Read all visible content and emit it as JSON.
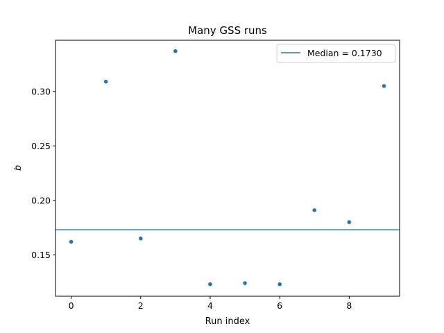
{
  "chart_data": {
    "type": "scatter",
    "title": "Many GSS runs",
    "xlabel": "Run index",
    "ylabel": "b",
    "xlim": [
      -0.45,
      9.45
    ],
    "ylim": [
      0.112,
      0.347
    ],
    "xticks": [
      0,
      2,
      4,
      6,
      8
    ],
    "xtick_labels": [
      "0",
      "2",
      "4",
      "6",
      "8"
    ],
    "yticks": [
      0.15,
      0.2,
      0.25,
      0.3
    ],
    "ytick_labels": [
      "0.15",
      "0.20",
      "0.25",
      "0.30"
    ],
    "grid": false,
    "legend_position": "top-right",
    "series": [
      {
        "marker": "point",
        "color": "#1f77b4",
        "x": [
          0,
          1,
          2,
          3,
          4,
          5,
          6,
          7,
          8,
          9
        ],
        "y": [
          0.162,
          0.309,
          0.165,
          0.337,
          0.123,
          0.124,
          0.123,
          0.191,
          0.18,
          0.305
        ]
      }
    ],
    "reference_lines": [
      {
        "orientation": "horizontal",
        "y": 0.173,
        "color": "#1f77b4",
        "label": "Median = 0.1730"
      }
    ]
  }
}
